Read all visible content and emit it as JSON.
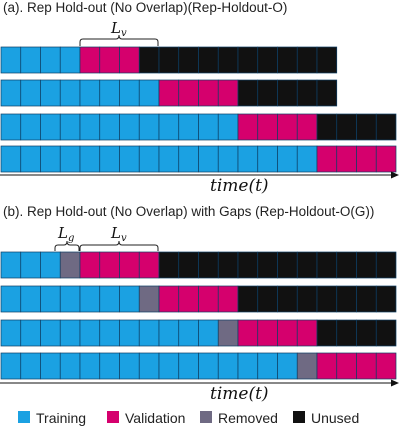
{
  "panel_a": {
    "title": "(a). Rep Hold-out (No Overlap)(Rep-Holdout-O)",
    "brace_label_main": "L",
    "brace_label_sub": "v",
    "time_label": "time(t)",
    "rows": [
      [
        "T",
        "T",
        "T",
        "T",
        "V",
        "V",
        "V",
        "U",
        "U",
        "U",
        "U",
        "U",
        "U",
        "U",
        "U",
        "U",
        "U"
      ],
      [
        "T",
        "T",
        "T",
        "T",
        "T",
        "T",
        "T",
        "T",
        "V",
        "V",
        "V",
        "V",
        "U",
        "U",
        "U",
        "U",
        "U"
      ],
      [
        "T",
        "T",
        "T",
        "T",
        "T",
        "T",
        "T",
        "T",
        "T",
        "T",
        "T",
        "T",
        "V",
        "V",
        "V",
        "V",
        "U",
        "U",
        "U",
        "U"
      ],
      [
        "T",
        "T",
        "T",
        "T",
        "T",
        "T",
        "T",
        "T",
        "T",
        "T",
        "T",
        "T",
        "T",
        "T",
        "T",
        "T",
        "V",
        "V",
        "V",
        "V"
      ]
    ]
  },
  "panel_b": {
    "title": "(b). Rep Hold-out (No Overlap) with Gaps (Rep-Holdout-O(G))",
    "brace_gap_main": "L",
    "brace_gap_sub": "g",
    "brace_val_main": "L",
    "brace_val_sub": "v",
    "time_label": "time(t)",
    "rows": [
      [
        "T",
        "T",
        "T",
        "R",
        "V",
        "V",
        "V",
        "V",
        "U",
        "U",
        "U",
        "U",
        "U",
        "U",
        "U",
        "U",
        "U",
        "U",
        "U",
        "U"
      ],
      [
        "T",
        "T",
        "T",
        "T",
        "T",
        "T",
        "T",
        "R",
        "V",
        "V",
        "V",
        "V",
        "U",
        "U",
        "U",
        "U",
        "U",
        "U",
        "U",
        "U"
      ],
      [
        "T",
        "T",
        "T",
        "T",
        "T",
        "T",
        "T",
        "T",
        "T",
        "T",
        "T",
        "R",
        "V",
        "V",
        "V",
        "V",
        "U",
        "U",
        "U",
        "U"
      ],
      [
        "T",
        "T",
        "T",
        "T",
        "T",
        "T",
        "T",
        "T",
        "T",
        "T",
        "T",
        "T",
        "T",
        "T",
        "T",
        "R",
        "V",
        "V",
        "V",
        "V"
      ]
    ]
  },
  "legend": [
    {
      "key": "T",
      "label": "Training",
      "color": "#1ba1e2"
    },
    {
      "key": "V",
      "label": "Validation",
      "color": "#d5006d"
    },
    {
      "key": "R",
      "label": "Removed",
      "color": "#6f6a83"
    },
    {
      "key": "U",
      "label": "Unused",
      "color": "#111111"
    }
  ]
}
